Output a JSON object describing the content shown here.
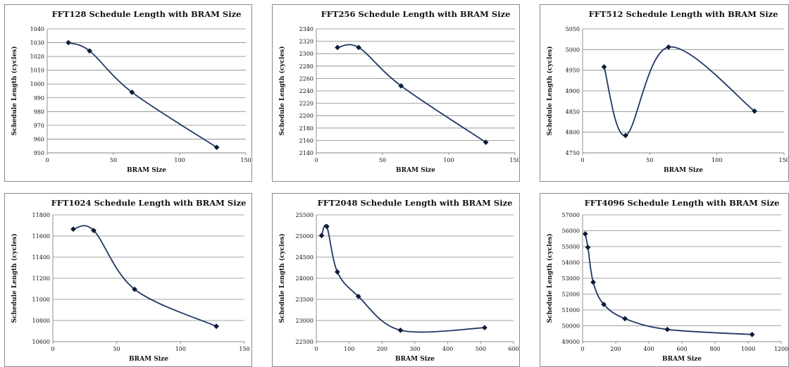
{
  "chart_data": [
    {
      "type": "line",
      "title": "FFT128 Schedule Length with BRAM Size",
      "xlabel": "BRAM Size",
      "ylabel": "Schedule Length (cycles)",
      "xlim": [
        0,
        150
      ],
      "xticks": [
        0,
        50,
        100,
        150
      ],
      "ylim": [
        950,
        1040
      ],
      "yticks": [
        950,
        960,
        970,
        980,
        990,
        1000,
        1010,
        1020,
        1030,
        1040
      ],
      "grid": true,
      "legend": "none",
      "x": [
        16,
        32,
        64,
        128
      ],
      "y": [
        1030,
        1024,
        994,
        954
      ]
    },
    {
      "type": "line",
      "title": "FFT256 Schedule Length with BRAM Size",
      "xlabel": "BRAM Size",
      "ylabel": "Schedule Length (cycles)",
      "xlim": [
        0,
        150
      ],
      "xticks": [
        0,
        50,
        100,
        150
      ],
      "ylim": [
        2140,
        2340
      ],
      "yticks": [
        2140,
        2160,
        2180,
        2200,
        2220,
        2240,
        2260,
        2280,
        2300,
        2320,
        2340
      ],
      "grid": true,
      "legend": "none",
      "x": [
        16,
        32,
        64,
        128
      ],
      "y": [
        2310,
        2310,
        2248,
        2157
      ]
    },
    {
      "type": "line",
      "title": "FFT512 Schedule Length with BRAM Size",
      "xlabel": "BRAM Size",
      "ylabel": "Schedule Length (cycles)",
      "xlim": [
        0,
        150
      ],
      "xticks": [
        0,
        50,
        100,
        150
      ],
      "ylim": [
        4750,
        5050
      ],
      "yticks": [
        4750,
        4800,
        4850,
        4900,
        4950,
        5000,
        5050
      ],
      "grid": true,
      "legend": "none",
      "x": [
        16,
        32,
        64,
        128
      ],
      "y": [
        4958,
        4792,
        5006,
        4851
      ]
    },
    {
      "type": "line",
      "title": "FFT1024 Schedule Length with BRAM Size",
      "xlabel": "BRAM Size",
      "ylabel": "Schedule Length (cycles)",
      "xlim": [
        0,
        150
      ],
      "xticks": [
        0,
        50,
        100,
        150
      ],
      "ylim": [
        10600,
        11800
      ],
      "yticks": [
        10600,
        10800,
        11000,
        11200,
        11400,
        11600,
        11800
      ],
      "grid": true,
      "legend": "none",
      "x": [
        16,
        32,
        64,
        128
      ],
      "y": [
        11665,
        11652,
        11095,
        10745
      ]
    },
    {
      "type": "line",
      "title": "FFT2048 Schedule Length with BRAM Size",
      "xlabel": "BRAM Size",
      "ylabel": "Schedule Length (cycles)",
      "xlim": [
        0,
        600
      ],
      "xticks": [
        0,
        100,
        200,
        300,
        400,
        500,
        600
      ],
      "ylim": [
        22500,
        25500
      ],
      "yticks": [
        22500,
        23000,
        23500,
        24000,
        24500,
        25000,
        25500
      ],
      "grid": true,
      "legend": "none",
      "x": [
        16,
        32,
        64,
        128,
        256,
        512
      ],
      "y": [
        25010,
        25225,
        24150,
        23570,
        22770,
        22830
      ]
    },
    {
      "type": "line",
      "title": "FFT4096 Schedule Length with BRAM Size",
      "xlabel": "BRAM Size",
      "ylabel": "Schedule Length (cycles)",
      "xlim": [
        0,
        1200
      ],
      "xticks": [
        0,
        200,
        400,
        600,
        800,
        1000,
        1200
      ],
      "ylim": [
        49000,
        57000
      ],
      "yticks": [
        49000,
        50000,
        51000,
        52000,
        53000,
        54000,
        55000,
        56000,
        57000
      ],
      "grid": true,
      "legend": "none",
      "x": [
        16,
        32,
        64,
        128,
        256,
        512,
        1024
      ],
      "y": [
        55800,
        54950,
        52750,
        51350,
        50450,
        49770,
        49450
      ]
    }
  ]
}
